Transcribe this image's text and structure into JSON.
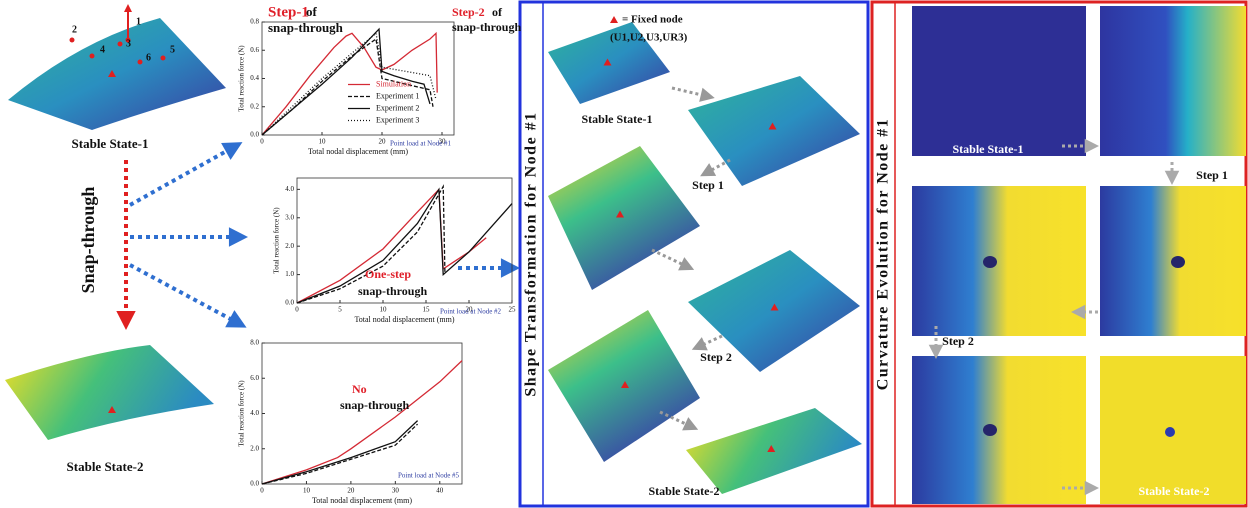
{
  "left": {
    "node_labels": [
      "1",
      "2",
      "3",
      "4",
      "5",
      "6"
    ],
    "stable_1": "Stable State-1",
    "arrow_label": "Snap-through",
    "stable_2": "Stable State-2"
  },
  "chart_data": [
    {
      "type": "line",
      "xlabel": "Total nodal displacement (mm)",
      "ylabel": "Total reaction force (N)",
      "xlim": [
        0,
        32
      ],
      "ylim": [
        0,
        0.8
      ],
      "xticks": [
        0,
        10,
        20,
        30
      ],
      "yticks": [
        {
          "value": 0,
          "label": "0.0"
        },
        {
          "value": 0.2,
          "label": "0.2"
        },
        {
          "value": 0.4,
          "label": "0.4"
        },
        {
          "value": 0.6,
          "label": "0.6"
        },
        {
          "value": 0.8,
          "label": "0.8"
        }
      ],
      "legend": "center",
      "note": "Point load at Node #1",
      "annotations": [
        {
          "text": "Step-1",
          "color": "#e0202a"
        },
        {
          "text": "of",
          "color": "#111"
        },
        {
          "text": "snap-through",
          "color": "#111"
        },
        {
          "text": "Step-2",
          "color": "#e0202a"
        },
        {
          "text": "of",
          "color": "#111"
        },
        {
          "text": "snap-through",
          "color": "#111"
        }
      ],
      "series": [
        {
          "name": "Simulation",
          "color": "#d42a35",
          "dash": "solid",
          "x": [
            0,
            4,
            8,
            12,
            14,
            15,
            17,
            19,
            20,
            22,
            25,
            28,
            29,
            29.2
          ],
          "values": [
            0,
            0.2,
            0.42,
            0.62,
            0.7,
            0.72,
            0.62,
            0.48,
            0.46,
            0.5,
            0.6,
            0.68,
            0.72,
            0.3
          ]
        },
        {
          "name": "Experiment 1",
          "color": "#111",
          "dash": "dashed",
          "x": [
            0,
            5,
            10,
            15,
            19,
            20,
            22,
            25,
            28,
            28.5
          ],
          "values": [
            0,
            0.18,
            0.38,
            0.56,
            0.68,
            0.4,
            0.38,
            0.35,
            0.32,
            0.2
          ]
        },
        {
          "name": "Experiment 2",
          "color": "#111",
          "dash": "solid",
          "x": [
            0,
            5,
            10,
            15,
            19.5,
            20,
            22,
            25,
            27,
            28
          ],
          "values": [
            0,
            0.18,
            0.36,
            0.55,
            0.75,
            0.45,
            0.42,
            0.38,
            0.36,
            0.22
          ]
        },
        {
          "name": "Experiment 3",
          "color": "#111",
          "dash": "dotted",
          "x": [
            0,
            5,
            10,
            15,
            19,
            20,
            24,
            28,
            29
          ],
          "values": [
            0,
            0.2,
            0.4,
            0.58,
            0.72,
            0.48,
            0.45,
            0.42,
            0.25
          ]
        }
      ]
    },
    {
      "type": "line",
      "xlabel": "Total nodal displacement (mm)",
      "ylabel": "Total reaction force (N)",
      "xlim": [
        0,
        25
      ],
      "ylim": [
        0,
        4.4
      ],
      "xticks": [
        0,
        5,
        10,
        15,
        20,
        25
      ],
      "yticks": [
        {
          "value": 0,
          "label": "0.0"
        },
        {
          "value": 1,
          "label": "1.0"
        },
        {
          "value": 2,
          "label": "2.0"
        },
        {
          "value": 3,
          "label": "3.0"
        },
        {
          "value": 4,
          "label": "4.0"
        }
      ],
      "note": "Point load at Node #2",
      "annotations": [
        {
          "text": "One-step",
          "color": "#e0202a"
        },
        {
          "text": "snap-through",
          "color": "#111"
        }
      ],
      "series": [
        {
          "color": "#d42a35",
          "dash": "solid",
          "x": [
            0,
            5,
            10,
            14,
            16.5,
            17,
            18,
            20,
            22
          ],
          "values": [
            0,
            0.8,
            1.9,
            3.2,
            4.0,
            1.2,
            1.4,
            1.8,
            2.3
          ]
        },
        {
          "color": "#111",
          "dash": "solid",
          "x": [
            0,
            5,
            10,
            14,
            16.5,
            17,
            20,
            25
          ],
          "values": [
            0,
            0.6,
            1.5,
            2.8,
            4.0,
            1.0,
            1.8,
            3.5
          ]
        },
        {
          "color": "#111",
          "dash": "dashed",
          "x": [
            0,
            5,
            10,
            14,
            17,
            17.2
          ],
          "values": [
            0,
            0.5,
            1.3,
            2.5,
            4.1,
            1.1
          ]
        }
      ]
    },
    {
      "type": "line",
      "xlabel": "Total nodal displacement (mm)",
      "ylabel": "Total reaction force (N)",
      "xlim": [
        0,
        45
      ],
      "ylim": [
        0,
        8
      ],
      "xticks": [
        0,
        10,
        20,
        30,
        40
      ],
      "yticks": [
        {
          "value": 0,
          "label": "0.0"
        },
        {
          "value": 2,
          "label": "2.0"
        },
        {
          "value": 4,
          "label": "4.0"
        },
        {
          "value": 6,
          "label": "6.0"
        },
        {
          "value": 8,
          "label": "8.0"
        }
      ],
      "note": "Point load at Node #5",
      "annotations": [
        {
          "text": "No",
          "color": "#e0202a"
        },
        {
          "text": "snap-through",
          "color": "#111"
        }
      ],
      "series": [
        {
          "color": "#d42a35",
          "dash": "solid",
          "x": [
            0,
            10,
            17,
            20,
            30,
            40,
            45
          ],
          "values": [
            0,
            0.8,
            1.5,
            2.0,
            3.8,
            5.8,
            7.0
          ]
        },
        {
          "color": "#111",
          "dash": "solid",
          "x": [
            0,
            10,
            20,
            30,
            35
          ],
          "values": [
            0,
            0.7,
            1.5,
            2.4,
            3.6
          ]
        },
        {
          "color": "#111",
          "dash": "dashed",
          "x": [
            0,
            10,
            20,
            30,
            35
          ],
          "values": [
            0,
            0.6,
            1.4,
            2.2,
            3.4
          ]
        }
      ]
    }
  ],
  "shape_panel": {
    "title": "Shape Transformation for Node #1",
    "legend": "= Fixed node",
    "legend_2": "(U1,U2,U3,UR3)",
    "labels": [
      "Stable State-1",
      "Step 1",
      "Step 2",
      "Stable State-2"
    ]
  },
  "curvature_panel": {
    "title": "Curvature Evolution for Node #1",
    "labels": [
      "Stable State-1",
      "Step 1",
      "Step 2",
      "Stable State-2"
    ]
  }
}
